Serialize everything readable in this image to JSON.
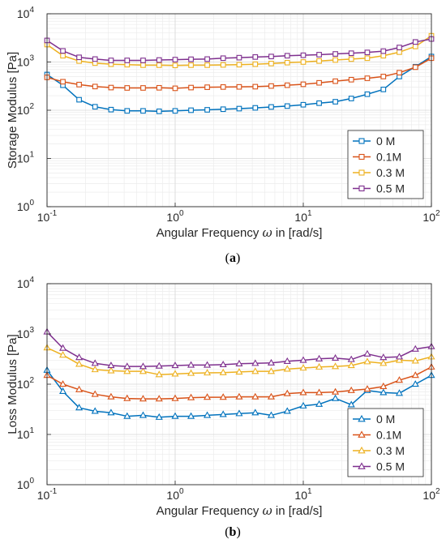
{
  "colors": {
    "c0": "#0072BD",
    "c1": "#D95319",
    "c2": "#EDB120",
    "c3": "#7E2F8E"
  },
  "chart_data": [
    {
      "type": "line",
      "panel": "a",
      "caption_letter": "a",
      "xlabel_prefix": "Angular Frequency ",
      "xlabel_symbol": "ω",
      "xlabel_suffix": " in [rad/s]",
      "ylabel": "Storage Modulus [Pa]",
      "xscale": "log",
      "yscale": "log",
      "xlim": [
        0.1,
        100
      ],
      "ylim": [
        1,
        10000
      ],
      "grid": true,
      "legend_position": "lower-right",
      "marker": "square",
      "x_ticks": [
        "10",
        "10",
        "10",
        "10"
      ],
      "x_tick_exponents": [
        "-1",
        "0",
        "1",
        "2"
      ],
      "y_ticks": [
        "10",
        "10",
        "10",
        "10",
        "10"
      ],
      "y_tick_exponents": [
        "0",
        "1",
        "2",
        "3",
        "4"
      ],
      "x": [
        0.1,
        0.133,
        0.178,
        0.237,
        0.316,
        0.422,
        0.562,
        0.75,
        1.0,
        1.33,
        1.78,
        2.37,
        3.16,
        4.22,
        5.62,
        7.5,
        10,
        13.3,
        17.8,
        23.7,
        31.6,
        42.2,
        56.2,
        75,
        100
      ],
      "series": [
        {
          "name": "0 M",
          "color_key": "c0",
          "values": [
            550,
            330,
            165,
            118,
            103,
            97,
            97,
            95,
            97,
            100,
            102,
            105,
            108,
            112,
            117,
            122,
            130,
            140,
            150,
            175,
            215,
            270,
            500,
            800,
            1300
          ]
        },
        {
          "name": "0.1M",
          "color_key": "c1",
          "values": [
            480,
            390,
            340,
            310,
            295,
            290,
            290,
            292,
            285,
            295,
            300,
            303,
            305,
            308,
            318,
            330,
            345,
            370,
            400,
            430,
            460,
            500,
            600,
            780,
            1200
          ]
        },
        {
          "name": "0.3 M",
          "color_key": "c2",
          "values": [
            2300,
            1350,
            1050,
            950,
            900,
            880,
            860,
            860,
            850,
            860,
            860,
            870,
            880,
            900,
            930,
            970,
            1000,
            1050,
            1100,
            1150,
            1200,
            1350,
            1600,
            2100,
            3500
          ]
        },
        {
          "name": "0.5 M",
          "color_key": "c3",
          "values": [
            2800,
            1700,
            1250,
            1150,
            1080,
            1080,
            1080,
            1100,
            1120,
            1140,
            1150,
            1200,
            1230,
            1270,
            1300,
            1350,
            1380,
            1420,
            1470,
            1520,
            1580,
            1680,
            2000,
            2600,
            3000
          ]
        }
      ]
    },
    {
      "type": "line",
      "panel": "b",
      "caption_letter": "b",
      "xlabel_prefix": "Angular Frequency ",
      "xlabel_symbol": "ω",
      "xlabel_suffix": " in [rad/s]",
      "ylabel": "Loss Modulus [Pa]",
      "xscale": "log",
      "yscale": "log",
      "xlim": [
        0.1,
        100
      ],
      "ylim": [
        1,
        10000
      ],
      "grid": true,
      "legend_position": "lower-right",
      "marker": "triangle",
      "x_ticks": [
        "10",
        "10",
        "10",
        "10"
      ],
      "x_tick_exponents": [
        "-1",
        "0",
        "1",
        "2"
      ],
      "y_ticks": [
        "10",
        "10",
        "10",
        "10",
        "10"
      ],
      "y_tick_exponents": [
        "0",
        "1",
        "2",
        "3",
        "4"
      ],
      "x": [
        0.1,
        0.133,
        0.178,
        0.237,
        0.316,
        0.422,
        0.562,
        0.75,
        1.0,
        1.33,
        1.78,
        2.37,
        3.16,
        4.22,
        5.62,
        7.5,
        10,
        13.3,
        17.8,
        23.7,
        31.6,
        42.2,
        56.2,
        75,
        100
      ],
      "series": [
        {
          "name": "0 M",
          "color_key": "c0",
          "values": [
            190,
            72,
            34,
            29,
            27,
            23,
            24,
            22,
            23,
            23,
            24,
            25,
            26,
            27,
            24,
            29,
            37,
            40,
            52,
            39,
            75,
            68,
            66,
            100,
            150
          ]
        },
        {
          "name": "0.1M",
          "color_key": "c1",
          "values": [
            150,
            100,
            78,
            63,
            56,
            52,
            51,
            51,
            52,
            54,
            55,
            55,
            56,
            56,
            56,
            65,
            68,
            68,
            70,
            75,
            80,
            90,
            120,
            150,
            220
          ]
        },
        {
          "name": "0.3 M",
          "color_key": "c2",
          "values": [
            530,
            380,
            250,
            195,
            185,
            180,
            180,
            155,
            160,
            165,
            168,
            170,
            175,
            180,
            180,
            200,
            210,
            220,
            225,
            235,
            280,
            260,
            300,
            290,
            350
          ]
        },
        {
          "name": "0.5 M",
          "color_key": "c3",
          "values": [
            1100,
            520,
            340,
            260,
            235,
            225,
            225,
            230,
            235,
            240,
            240,
            245,
            255,
            260,
            265,
            285,
            300,
            320,
            330,
            310,
            400,
            340,
            350,
            500,
            560
          ]
        }
      ]
    }
  ]
}
